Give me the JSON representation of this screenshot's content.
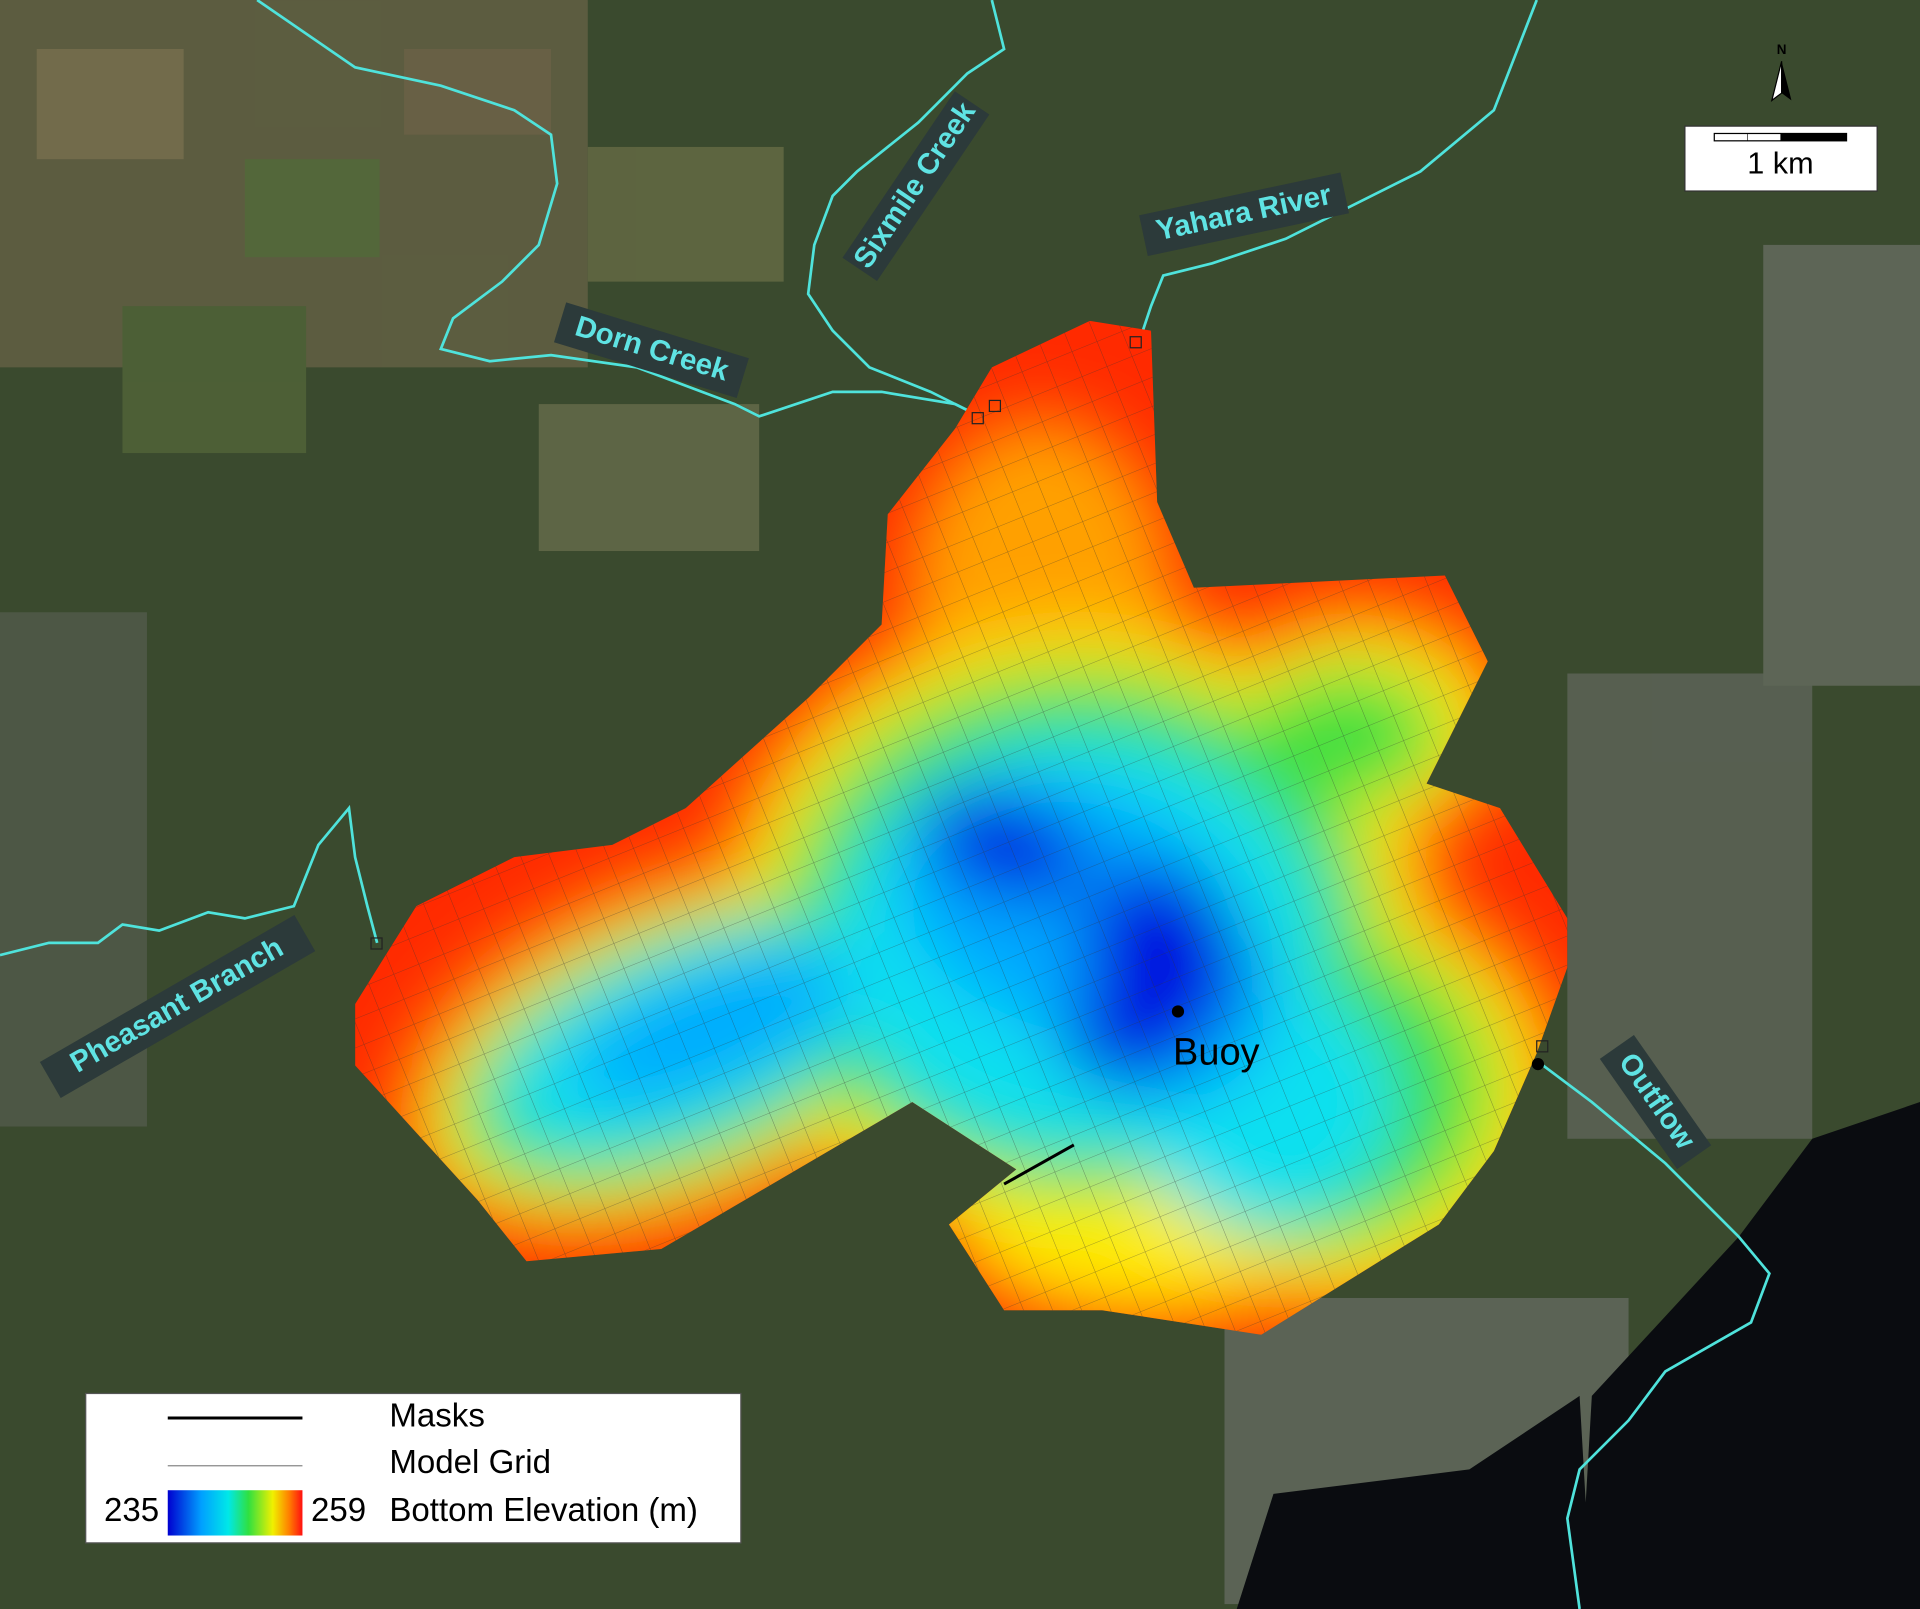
{
  "map": {
    "rivers": [
      "Sixmile Creek",
      "Yahara River",
      "Dorn Creek",
      "Pheasant Branch",
      "Outflow"
    ],
    "north": "N",
    "scale_bar": "1 km",
    "buoy": "Buoy",
    "legend": {
      "masks": "Masks",
      "model_grid": "Model Grid",
      "colorbar_min": 235,
      "colorbar_max": 259,
      "colorbar_label": "Bottom Elevation (m)"
    }
  }
}
